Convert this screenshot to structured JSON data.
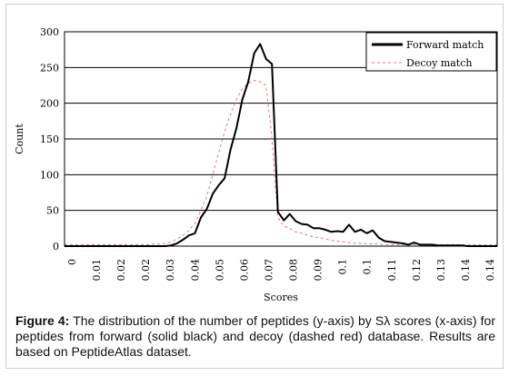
{
  "chart_data": {
    "type": "line",
    "title": "",
    "xlabel": "Scores",
    "ylabel": "Count",
    "ylim": [
      0,
      300
    ],
    "yticks": [
      0,
      50,
      100,
      150,
      200,
      250,
      300
    ],
    "xticks": [
      "0",
      "0.01",
      "0.02",
      "0.02",
      "0.03",
      "0.04",
      "0.05",
      "0.06",
      "0.07",
      "0.08",
      "0.09",
      "0.1",
      "0.1",
      "0.11",
      "0.12",
      "0.13",
      "0.14",
      "0.14"
    ],
    "grid": "horizontal",
    "legend_position": "top-right",
    "x": [
      0,
      0.002,
      0.004,
      0.006,
      0.008,
      0.01,
      0.012,
      0.014,
      0.016,
      0.018,
      0.02,
      0.022,
      0.024,
      0.026,
      0.028,
      0.03,
      0.032,
      0.034,
      0.036,
      0.038,
      0.04,
      0.042,
      0.044,
      0.046,
      0.048,
      0.05,
      0.052,
      0.054,
      0.056,
      0.058,
      0.06,
      0.062,
      0.064,
      0.066,
      0.068,
      0.07,
      0.072,
      0.074,
      0.076,
      0.078,
      0.08,
      0.082,
      0.084,
      0.086,
      0.088,
      0.09,
      0.092,
      0.094,
      0.096,
      0.098,
      0.1,
      0.102,
      0.104,
      0.106,
      0.108,
      0.11,
      0.112,
      0.114,
      0.116,
      0.118,
      0.12,
      0.122,
      0.124,
      0.126,
      0.128,
      0.13,
      0.132,
      0.134,
      0.136,
      0.138,
      0.14,
      0.142,
      0.144,
      0.146
    ],
    "series": [
      {
        "name": "Forward match",
        "color": "#000000",
        "style": "solid",
        "values": [
          0,
          0,
          0,
          0,
          0,
          0,
          0,
          0,
          0,
          0,
          0,
          0,
          0,
          0,
          0,
          0,
          0,
          0,
          1,
          4,
          9,
          15,
          18,
          40,
          52,
          73,
          85,
          95,
          135,
          165,
          205,
          230,
          270,
          283,
          262,
          255,
          48,
          36,
          45,
          35,
          31,
          30,
          25,
          25,
          23,
          20,
          21,
          20,
          30,
          20,
          23,
          18,
          22,
          12,
          7,
          6,
          5,
          4,
          2,
          5,
          2,
          2,
          2,
          1,
          1,
          1,
          1,
          1,
          0,
          0,
          0,
          0,
          0,
          0
        ]
      },
      {
        "name": "Decoy match",
        "color": "#e07a7a",
        "style": "dashed",
        "values": [
          2,
          2,
          2,
          2,
          2,
          2,
          2,
          2,
          2,
          2,
          2,
          2,
          2,
          2,
          2,
          3,
          3,
          4,
          6,
          10,
          15,
          22,
          32,
          50,
          70,
          100,
          130,
          160,
          185,
          205,
          220,
          228,
          232,
          230,
          225,
          150,
          40,
          28,
          25,
          20,
          18,
          15,
          13,
          12,
          10,
          8,
          7,
          6,
          5,
          4,
          4,
          3,
          3,
          3,
          2,
          2,
          2,
          2,
          2,
          2,
          2,
          2,
          2,
          2,
          2,
          2,
          2,
          2,
          2,
          2,
          2,
          2,
          2,
          2
        ]
      }
    ]
  },
  "caption": {
    "label": "Figure 4:",
    "text": " The distribution of the number of peptides (y-axis) by Sλ scores (x-axis) for peptides from forward (solid black) and decoy (dashed red) database. Results are based on PeptideAtlas dataset."
  }
}
